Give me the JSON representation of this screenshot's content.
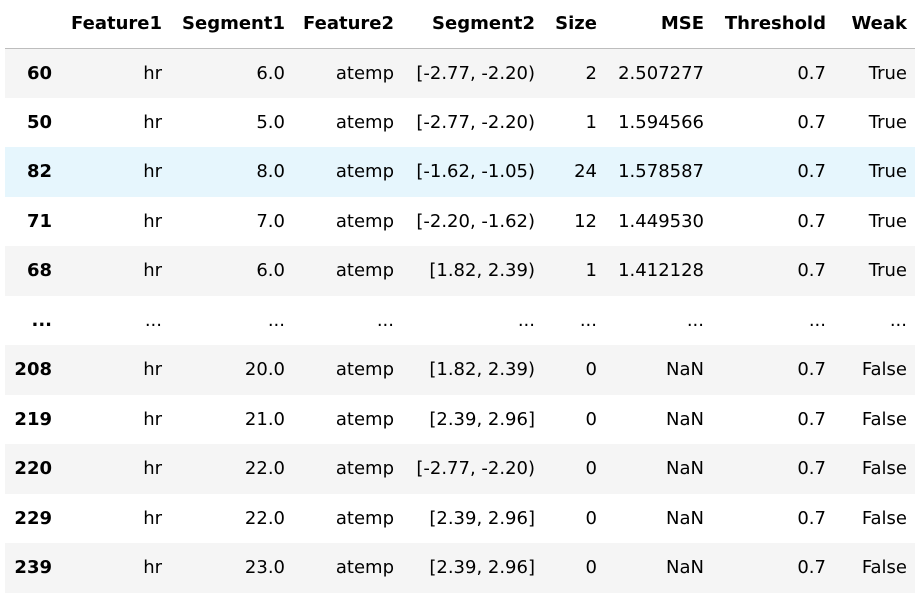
{
  "table": {
    "columns": [
      "",
      "Feature1",
      "Segment1",
      "Feature2",
      "Segment2",
      "Size",
      "MSE",
      "Threshold",
      "Weak"
    ],
    "highlight_index": 2,
    "rows": [
      [
        "60",
        "hr",
        "6.0",
        "atemp",
        "[-2.77, -2.20)",
        "2",
        "2.507277",
        "0.7",
        "True"
      ],
      [
        "50",
        "hr",
        "5.0",
        "atemp",
        "[-2.77, -2.20)",
        "1",
        "1.594566",
        "0.7",
        "True"
      ],
      [
        "82",
        "hr",
        "8.0",
        "atemp",
        "[-1.62, -1.05)",
        "24",
        "1.578587",
        "0.7",
        "True"
      ],
      [
        "71",
        "hr",
        "7.0",
        "atemp",
        "[-2.20, -1.62)",
        "12",
        "1.449530",
        "0.7",
        "True"
      ],
      [
        "68",
        "hr",
        "6.0",
        "atemp",
        "[1.82, 2.39)",
        "1",
        "1.412128",
        "0.7",
        "True"
      ],
      [
        "...",
        "...",
        "...",
        "...",
        "...",
        "...",
        "...",
        "...",
        "..."
      ],
      [
        "208",
        "hr",
        "20.0",
        "atemp",
        "[1.82, 2.39)",
        "0",
        "NaN",
        "0.7",
        "False"
      ],
      [
        "219",
        "hr",
        "21.0",
        "atemp",
        "[2.39, 2.96]",
        "0",
        "NaN",
        "0.7",
        "False"
      ],
      [
        "220",
        "hr",
        "22.0",
        "atemp",
        "[-2.77, -2.20)",
        "0",
        "NaN",
        "0.7",
        "False"
      ],
      [
        "229",
        "hr",
        "22.0",
        "atemp",
        "[2.39, 2.96]",
        "0",
        "NaN",
        "0.7",
        "False"
      ],
      [
        "239",
        "hr",
        "23.0",
        "atemp",
        "[2.39, 2.96]",
        "0",
        "NaN",
        "0.7",
        "False"
      ]
    ]
  }
}
